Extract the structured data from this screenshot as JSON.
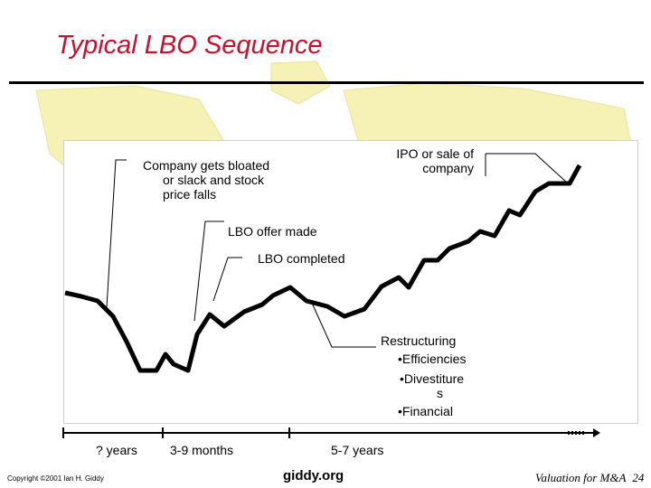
{
  "title": "Typical LBO Sequence",
  "annotations": {
    "bloated": [
      "Company gets bloated",
      "or slack and stock",
      "price falls"
    ],
    "ipo": [
      "IPO or sale of",
      "company"
    ],
    "offer": "LBO offer made",
    "completed": "LBO completed",
    "restructuring": {
      "heading": "Restructuring",
      "items": [
        "•Efficiencies",
        "•Divestiture",
        "s",
        "•Financial"
      ]
    }
  },
  "timeline": {
    "labels": [
      "? years",
      "3-9 months",
      "5-7 years"
    ]
  },
  "footer": {
    "copyright": "Copyright ©2001 Ian H. Giddy",
    "site": "giddy.org",
    "course": "Valuation for M&A",
    "page": "24"
  },
  "colors": {
    "title": "#c8102e",
    "accent": "#c8102e",
    "map": "#f5f0b0"
  }
}
